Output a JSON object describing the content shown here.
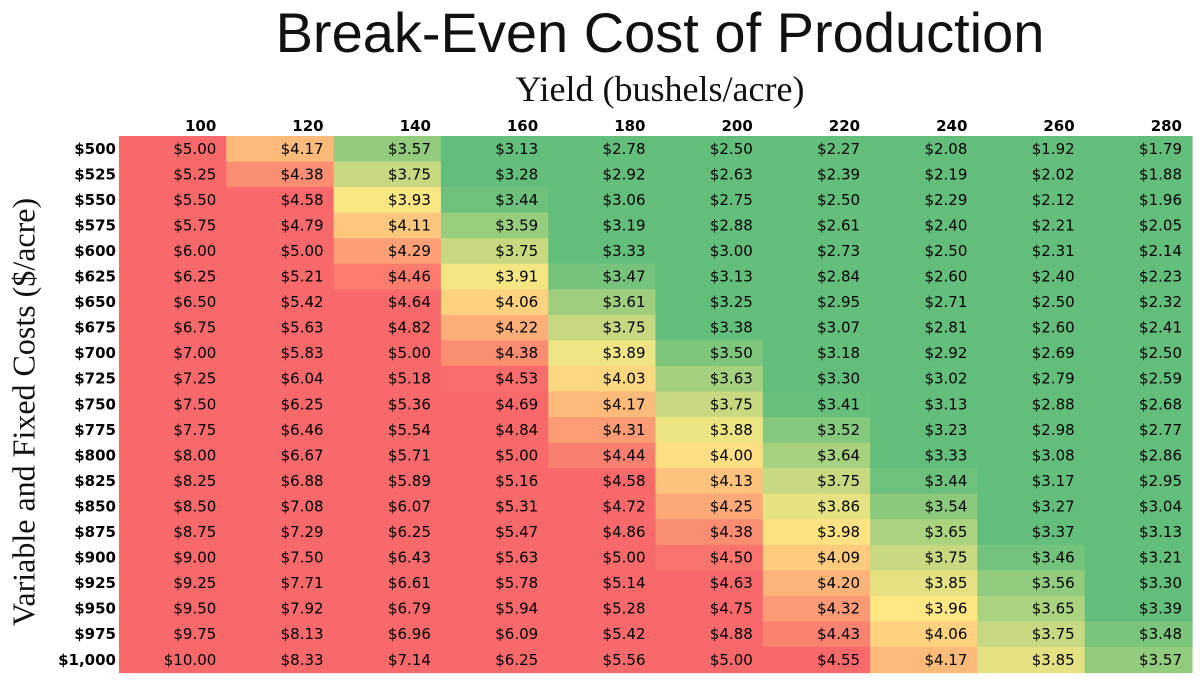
{
  "chart_data": {
    "type": "heatmap",
    "title": "Break-Even Cost of Production",
    "xlabel": "Yield (bushels/acre)",
    "ylabel": "Variable and Fixed Costs ($/acre)",
    "x_ticks": [
      "100",
      "120",
      "140",
      "160",
      "180",
      "200",
      "220",
      "240",
      "260",
      "280"
    ],
    "y_ticks": [
      "$500",
      "$525",
      "$550",
      "$575",
      "$600",
      "$625",
      "$650",
      "$675",
      "$700",
      "$725",
      "$750",
      "$775",
      "$800",
      "$825",
      "$850",
      "$875",
      "$900",
      "$925",
      "$950",
      "$975",
      "$1,000"
    ],
    "x": [
      100,
      120,
      140,
      160,
      180,
      200,
      220,
      240,
      260,
      280
    ],
    "y": [
      500,
      525,
      550,
      575,
      600,
      625,
      650,
      675,
      700,
      725,
      750,
      775,
      800,
      825,
      850,
      875,
      900,
      925,
      950,
      975,
      1000
    ],
    "cells": [
      [
        "$5.00",
        "$4.17",
        "$3.57",
        "$3.13",
        "$2.78",
        "$2.50",
        "$2.27",
        "$2.08",
        "$1.92",
        "$1.79"
      ],
      [
        "$5.25",
        "$4.38",
        "$3.75",
        "$3.28",
        "$2.92",
        "$2.63",
        "$2.39",
        "$2.19",
        "$2.02",
        "$1.88"
      ],
      [
        "$5.50",
        "$4.58",
        "$3.93",
        "$3.44",
        "$3.06",
        "$2.75",
        "$2.50",
        "$2.29",
        "$2.12",
        "$1.96"
      ],
      [
        "$5.75",
        "$4.79",
        "$4.11",
        "$3.59",
        "$3.19",
        "$2.88",
        "$2.61",
        "$2.40",
        "$2.21",
        "$2.05"
      ],
      [
        "$6.00",
        "$5.00",
        "$4.29",
        "$3.75",
        "$3.33",
        "$3.00",
        "$2.73",
        "$2.50",
        "$2.31",
        "$2.14"
      ],
      [
        "$6.25",
        "$5.21",
        "$4.46",
        "$3.91",
        "$3.47",
        "$3.13",
        "$2.84",
        "$2.60",
        "$2.40",
        "$2.23"
      ],
      [
        "$6.50",
        "$5.42",
        "$4.64",
        "$4.06",
        "$3.61",
        "$3.25",
        "$2.95",
        "$2.71",
        "$2.50",
        "$2.32"
      ],
      [
        "$6.75",
        "$5.63",
        "$4.82",
        "$4.22",
        "$3.75",
        "$3.38",
        "$3.07",
        "$2.81",
        "$2.60",
        "$2.41"
      ],
      [
        "$7.00",
        "$5.83",
        "$5.00",
        "$4.38",
        "$3.89",
        "$3.50",
        "$3.18",
        "$2.92",
        "$2.69",
        "$2.50"
      ],
      [
        "$7.25",
        "$6.04",
        "$5.18",
        "$4.53",
        "$4.03",
        "$3.63",
        "$3.30",
        "$3.02",
        "$2.79",
        "$2.59"
      ],
      [
        "$7.50",
        "$6.25",
        "$5.36",
        "$4.69",
        "$4.17",
        "$3.75",
        "$3.41",
        "$3.13",
        "$2.88",
        "$2.68"
      ],
      [
        "$7.75",
        "$6.46",
        "$5.54",
        "$4.84",
        "$4.31",
        "$3.88",
        "$3.52",
        "$3.23",
        "$2.98",
        "$2.77"
      ],
      [
        "$8.00",
        "$6.67",
        "$5.71",
        "$5.00",
        "$4.44",
        "$4.00",
        "$3.64",
        "$3.33",
        "$3.08",
        "$2.86"
      ],
      [
        "$8.25",
        "$6.88",
        "$5.89",
        "$5.16",
        "$4.58",
        "$4.13",
        "$3.75",
        "$3.44",
        "$3.17",
        "$2.95"
      ],
      [
        "$8.50",
        "$7.08",
        "$6.07",
        "$5.31",
        "$4.72",
        "$4.25",
        "$3.86",
        "$3.54",
        "$3.27",
        "$3.04"
      ],
      [
        "$8.75",
        "$7.29",
        "$6.25",
        "$5.47",
        "$4.86",
        "$4.38",
        "$3.98",
        "$3.65",
        "$3.37",
        "$3.13"
      ],
      [
        "$9.00",
        "$7.50",
        "$6.43",
        "$5.63",
        "$5.00",
        "$4.50",
        "$4.09",
        "$3.75",
        "$3.46",
        "$3.21"
      ],
      [
        "$9.25",
        "$7.71",
        "$6.61",
        "$5.78",
        "$5.14",
        "$4.63",
        "$4.20",
        "$3.85",
        "$3.56",
        "$3.30"
      ],
      [
        "$9.50",
        "$7.92",
        "$6.79",
        "$5.94",
        "$5.28",
        "$4.75",
        "$4.32",
        "$3.96",
        "$3.65",
        "$3.39"
      ],
      [
        "$9.75",
        "$8.13",
        "$6.96",
        "$6.09",
        "$5.42",
        "$4.88",
        "$4.43",
        "$4.06",
        "$3.75",
        "$3.48"
      ],
      [
        "$10.00",
        "$8.33",
        "$7.14",
        "$6.25",
        "$5.56",
        "$5.00",
        "$4.55",
        "$4.17",
        "$3.85",
        "$3.57"
      ]
    ],
    "color_scale": {
      "stops": [
        {
          "value": 3.4,
          "color": "#63be7b"
        },
        {
          "value": 3.95,
          "color": "#ffe984"
        },
        {
          "value": 4.55,
          "color": "#f8696b"
        }
      ]
    },
    "grid": false,
    "legend": "none"
  }
}
